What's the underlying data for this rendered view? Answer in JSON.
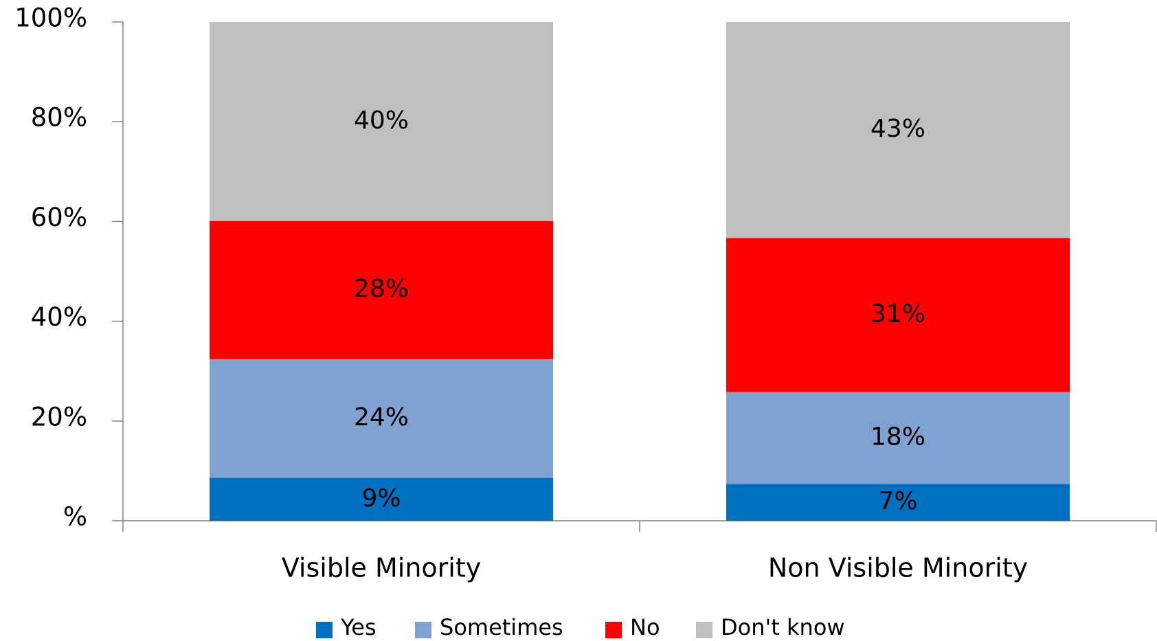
{
  "chart_data": {
    "type": "stacked_bar",
    "categories": [
      "Visible Minority",
      "Non Visible Minority"
    ],
    "series": [
      {
        "name": "Yes",
        "color": "#0070c0",
        "values": [
          8.6,
          7.4
        ],
        "value_labels": [
          "9%",
          "7%"
        ]
      },
      {
        "name": "Sometimes",
        "color": "#7fa2d2",
        "values": [
          23.8,
          18.4
        ],
        "value_labels": [
          "24%",
          "18%"
        ]
      },
      {
        "name": "No",
        "color": "#ff0000",
        "values": [
          27.7,
          30.9
        ],
        "value_labels": [
          "28%",
          "31%"
        ]
      },
      {
        "name": "Don't know",
        "color": "#bfbfbf",
        "values": [
          39.9,
          43.3
        ],
        "value_labels": [
          "40%",
          "43%"
        ]
      }
    ],
    "ylim": [
      0,
      100
    ],
    "yticks": [
      {
        "value": 0,
        "label": "%"
      },
      {
        "value": 20,
        "label": "20%"
      },
      {
        "value": 40,
        "label": "40%"
      },
      {
        "value": 60,
        "label": "60%"
      },
      {
        "value": 80,
        "label": "80%"
      },
      {
        "value": 100,
        "label": "100%"
      }
    ],
    "legend": "bottom"
  }
}
